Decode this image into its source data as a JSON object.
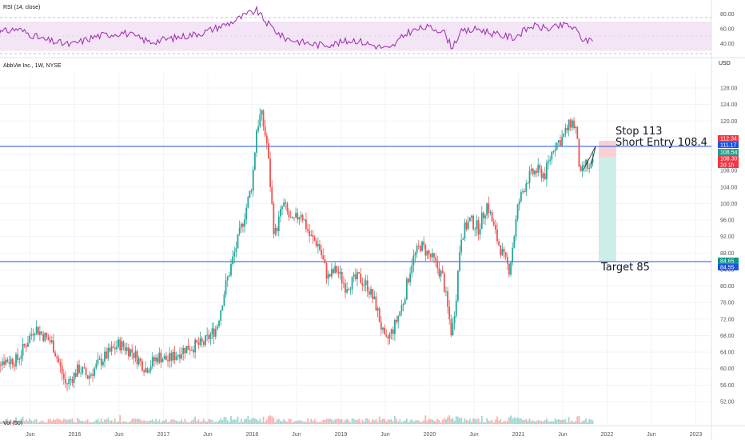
{
  "panels": {
    "rsi_header": "RSI (14, close)",
    "price_header": "AbbVie Inc., 1W, NYSE",
    "volume_header": "Vol (50)"
  },
  "currency_label": "USD",
  "annotations": {
    "stop": "Stop 113",
    "short_entry": "Short Entry 108.4",
    "target": "Target 85"
  },
  "price_tags": [
    {
      "text": "112.34",
      "color": "#f23645"
    },
    {
      "text": "111.17",
      "color": "#1e53e5"
    },
    {
      "text": "108.54",
      "color": "#2a9d8f"
    },
    {
      "text": "108.30",
      "color": "#f23645"
    },
    {
      "text": "2d 1h",
      "color": "#f23645"
    },
    {
      "text": "84.65",
      "color": "#089981"
    },
    {
      "text": "84.55",
      "color": "#1e53e5"
    }
  ],
  "colors": {
    "up": "#26a69a",
    "down": "#ef5350",
    "hline": "#1e53e5",
    "rsi_line": "#9c27b0",
    "rsi_band": "#f3e5f5",
    "stop_zone": "#f8c8cc",
    "target_zone": "#c7ebe6"
  },
  "chart_data": [
    {
      "type": "line",
      "panel": "price",
      "note": "weekly candlestick chart, approximated by weekly closes",
      "y_axis_ticks": [
        52,
        56,
        60,
        64,
        68,
        72,
        76,
        80,
        84,
        88,
        92,
        96,
        100,
        104,
        108,
        112,
        116,
        120,
        124,
        128
      ],
      "ylim": [
        48.5,
        131.5
      ],
      "x_axis_labels": [
        "Jun",
        "2016",
        "Jun",
        "2017",
        "Jun",
        "2018",
        "Jun",
        "2019",
        "Jun",
        "2020",
        "Jun",
        "2021",
        "Jun",
        "2022",
        "Jun",
        "2023"
      ],
      "x": [
        2015.3,
        2015.5,
        2015.7,
        2015.85,
        2016.0,
        2016.1,
        2016.25,
        2016.45,
        2016.6,
        2016.75,
        2016.9,
        2017.0,
        2017.2,
        2017.4,
        2017.55,
        2017.65,
        2017.75,
        2017.85,
        2017.95,
        2018.0,
        2018.05,
        2018.12,
        2018.2,
        2018.3,
        2018.4,
        2018.5,
        2018.6,
        2018.7,
        2018.8,
        2018.9,
        2019.0,
        2019.15,
        2019.25,
        2019.35,
        2019.45,
        2019.55,
        2019.65,
        2019.75,
        2019.85,
        2020.0,
        2020.1,
        2020.2,
        2020.25,
        2020.3,
        2020.4,
        2020.5,
        2020.6,
        2020.7,
        2020.8,
        2020.85,
        2020.95,
        2021.05,
        2021.15,
        2021.25,
        2021.35,
        2021.45,
        2021.55,
        2021.6,
        2021.65,
        2021.7,
        2021.75,
        2021.8
      ],
      "values": [
        62,
        70,
        66,
        56,
        60,
        58,
        62,
        66,
        64,
        60,
        63,
        62,
        65,
        66,
        70,
        80,
        88,
        96,
        105,
        118,
        122,
        114,
        92,
        100,
        95,
        98,
        92,
        90,
        82,
        84,
        80,
        82,
        80,
        75,
        66,
        70,
        76,
        86,
        90,
        86,
        82,
        68,
        78,
        92,
        96,
        94,
        100,
        92,
        86,
        84,
        100,
        106,
        108,
        107,
        114,
        116,
        120,
        118,
        106,
        110,
        108,
        110
      ],
      "hlines": [
        111.17,
        84.65
      ]
    },
    {
      "type": "line",
      "panel": "rsi",
      "name": "RSI (14, close)",
      "y_axis_ticks": [
        40.0,
        60.0,
        80.0
      ],
      "ylim": [
        25,
        95
      ],
      "bands": [
        30,
        70
      ],
      "x": [
        2015.0,
        2015.3,
        2015.6,
        2015.9,
        2016.2,
        2016.5,
        2016.8,
        2017.1,
        2017.4,
        2017.7,
        2017.9,
        2018.0,
        2018.1,
        2018.3,
        2018.5,
        2018.7,
        2018.9,
        2019.1,
        2019.3,
        2019.5,
        2019.7,
        2019.9,
        2020.1,
        2020.2,
        2020.3,
        2020.5,
        2020.7,
        2020.9,
        2021.1,
        2021.3,
        2021.5,
        2021.6,
        2021.7,
        2021.8
      ],
      "values": [
        52,
        60,
        45,
        38,
        50,
        55,
        42,
        48,
        55,
        68,
        80,
        85,
        70,
        48,
        42,
        38,
        40,
        45,
        38,
        32,
        55,
        62,
        58,
        35,
        55,
        60,
        52,
        48,
        64,
        60,
        66,
        58,
        42,
        48
      ]
    }
  ]
}
